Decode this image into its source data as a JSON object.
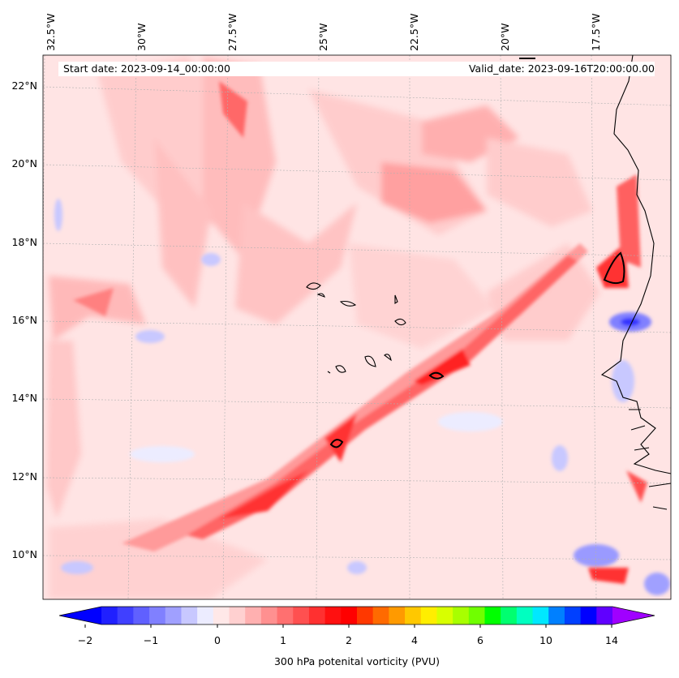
{
  "header": {
    "start_date": "Start date: 2023-09-14_00:00:00",
    "valid_date": "Valid_date: 2023-09-16T20:00:00.00"
  },
  "map": {
    "lon_labels": [
      "32.5°W",
      "30°W",
      "27.5°W",
      "25°W",
      "22.5°W",
      "20°W",
      "17.5°W"
    ],
    "lat_labels": [
      "22°N",
      "20°N",
      "18°N",
      "16°N",
      "14°N",
      "12°N",
      "10°N"
    ],
    "gridlines": true,
    "coastline_color": "#000000"
  },
  "colorbar": {
    "label": "300 hPa potenital vorticity (PVU)",
    "tick_labels": [
      "−2",
      "−1",
      "0",
      "1",
      "2",
      "4",
      "6",
      "10",
      "14"
    ],
    "colors": [
      "#0000ff",
      "#2020ff",
      "#4040ff",
      "#6060ff",
      "#8080ff",
      "#a0a0ff",
      "#c8c8ff",
      "#ececff",
      "#ffe8e8",
      "#ffd0d0",
      "#ffb0b0",
      "#ff9090",
      "#ff7070",
      "#ff5050",
      "#ff3030",
      "#ff1010",
      "#ff0000",
      "#ff3800",
      "#ff6a00",
      "#ff9a00",
      "#ffc800",
      "#ffee00",
      "#d8ff00",
      "#a8ff00",
      "#70ff00",
      "#00ff00",
      "#00ff70",
      "#00ffc0",
      "#00e8ff",
      "#0080ff",
      "#0040ff",
      "#0000ff",
      "#6000ff",
      "#a000ff"
    ],
    "extend": "both"
  }
}
